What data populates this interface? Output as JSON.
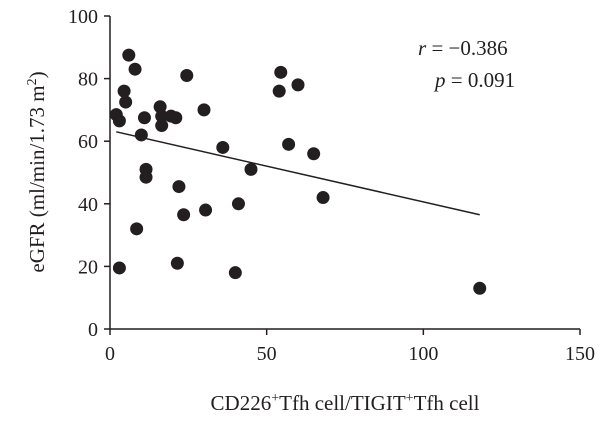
{
  "chart_data": {
    "type": "scatter",
    "xlabel": {
      "prefix": "CD226",
      "prefix_sup": "+",
      "middle": "Tfh cell/TIGIT",
      "middle_sup": "+",
      "suffix": "Tfh cell"
    },
    "ylabel": {
      "main": "eGFR (ml/min/1.73 m",
      "sup": "2",
      "close": ")"
    },
    "xlim": [
      0,
      150
    ],
    "ylim": [
      0,
      100
    ],
    "x_ticks": [
      0,
      50,
      100,
      150
    ],
    "y_ticks": [
      0,
      20,
      40,
      60,
      80,
      100
    ],
    "grid": false,
    "annotations": {
      "r_symbol": "r",
      "r_value": " = −0.386",
      "p_symbol": "p",
      "p_value": " = 0.091"
    },
    "fit_line": {
      "x": [
        2,
        118
      ],
      "y": [
        63,
        36.5
      ]
    },
    "points": [
      {
        "x": 2,
        "y": 68.5
      },
      {
        "x": 3,
        "y": 66.5
      },
      {
        "x": 3,
        "y": 19.5
      },
      {
        "x": 4.5,
        "y": 76
      },
      {
        "x": 5,
        "y": 72.5
      },
      {
        "x": 6,
        "y": 87.5
      },
      {
        "x": 8,
        "y": 83
      },
      {
        "x": 8.5,
        "y": 32
      },
      {
        "x": 10,
        "y": 62
      },
      {
        "x": 11,
        "y": 67.5
      },
      {
        "x": 11.5,
        "y": 51
      },
      {
        "x": 11.5,
        "y": 48.5
      },
      {
        "x": 16,
        "y": 71
      },
      {
        "x": 16.5,
        "y": 68
      },
      {
        "x": 16.5,
        "y": 65
      },
      {
        "x": 19.5,
        "y": 68
      },
      {
        "x": 21,
        "y": 67.5
      },
      {
        "x": 21.5,
        "y": 21
      },
      {
        "x": 22,
        "y": 45.5
      },
      {
        "x": 23.5,
        "y": 36.5
      },
      {
        "x": 24.5,
        "y": 81
      },
      {
        "x": 30,
        "y": 70
      },
      {
        "x": 30.5,
        "y": 38
      },
      {
        "x": 36,
        "y": 58
      },
      {
        "x": 40,
        "y": 18
      },
      {
        "x": 41,
        "y": 40
      },
      {
        "x": 45,
        "y": 51
      },
      {
        "x": 54,
        "y": 76
      },
      {
        "x": 54.5,
        "y": 82
      },
      {
        "x": 57,
        "y": 59
      },
      {
        "x": 60,
        "y": 78
      },
      {
        "x": 65,
        "y": 56
      },
      {
        "x": 68,
        "y": 42
      },
      {
        "x": 118,
        "y": 13
      }
    ]
  }
}
